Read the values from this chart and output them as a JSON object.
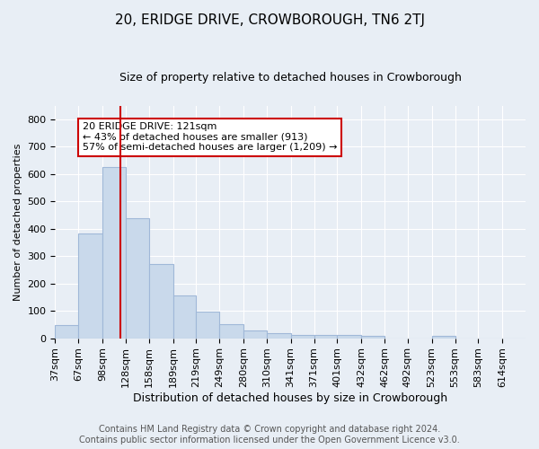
{
  "title": "20, ERIDGE DRIVE, CROWBOROUGH, TN6 2TJ",
  "subtitle": "Size of property relative to detached houses in Crowborough",
  "xlabel": "Distribution of detached houses by size in Crowborough",
  "ylabel": "Number of detached properties",
  "footer_line1": "Contains HM Land Registry data © Crown copyright and database right 2024.",
  "footer_line2": "Contains public sector information licensed under the Open Government Licence v3.0.",
  "annotation_line1": "20 ERIDGE DRIVE: 121sqm",
  "annotation_line2": "← 43% of detached houses are smaller (913)",
  "annotation_line3": "57% of semi-detached houses are larger (1,209) →",
  "bar_edges": [
    37,
    67,
    98,
    128,
    158,
    189,
    219,
    249,
    280,
    310,
    341,
    371,
    401,
    432,
    462,
    492,
    523,
    553,
    583,
    614,
    644
  ],
  "bar_heights": [
    48,
    383,
    627,
    438,
    270,
    157,
    98,
    52,
    28,
    17,
    12,
    12,
    12,
    10,
    0,
    0,
    8,
    0,
    0,
    0
  ],
  "property_size": 121,
  "ylim": [
    0,
    850
  ],
  "xlim": [
    37,
    644
  ],
  "yticks": [
    0,
    100,
    200,
    300,
    400,
    500,
    600,
    700,
    800
  ],
  "bar_color": "#c9d9eb",
  "bar_edge_color": "#a0b8d8",
  "redline_color": "#cc0000",
  "background_color": "#e8eef5",
  "axes_bg_color": "#e8eef5",
  "grid_color": "#ffffff",
  "annotation_box_color": "#ffffff",
  "annotation_border_color": "#cc0000",
  "title_fontsize": 11,
  "subtitle_fontsize": 9,
  "xlabel_fontsize": 9,
  "ylabel_fontsize": 8,
  "tick_fontsize": 8,
  "footer_fontsize": 7
}
